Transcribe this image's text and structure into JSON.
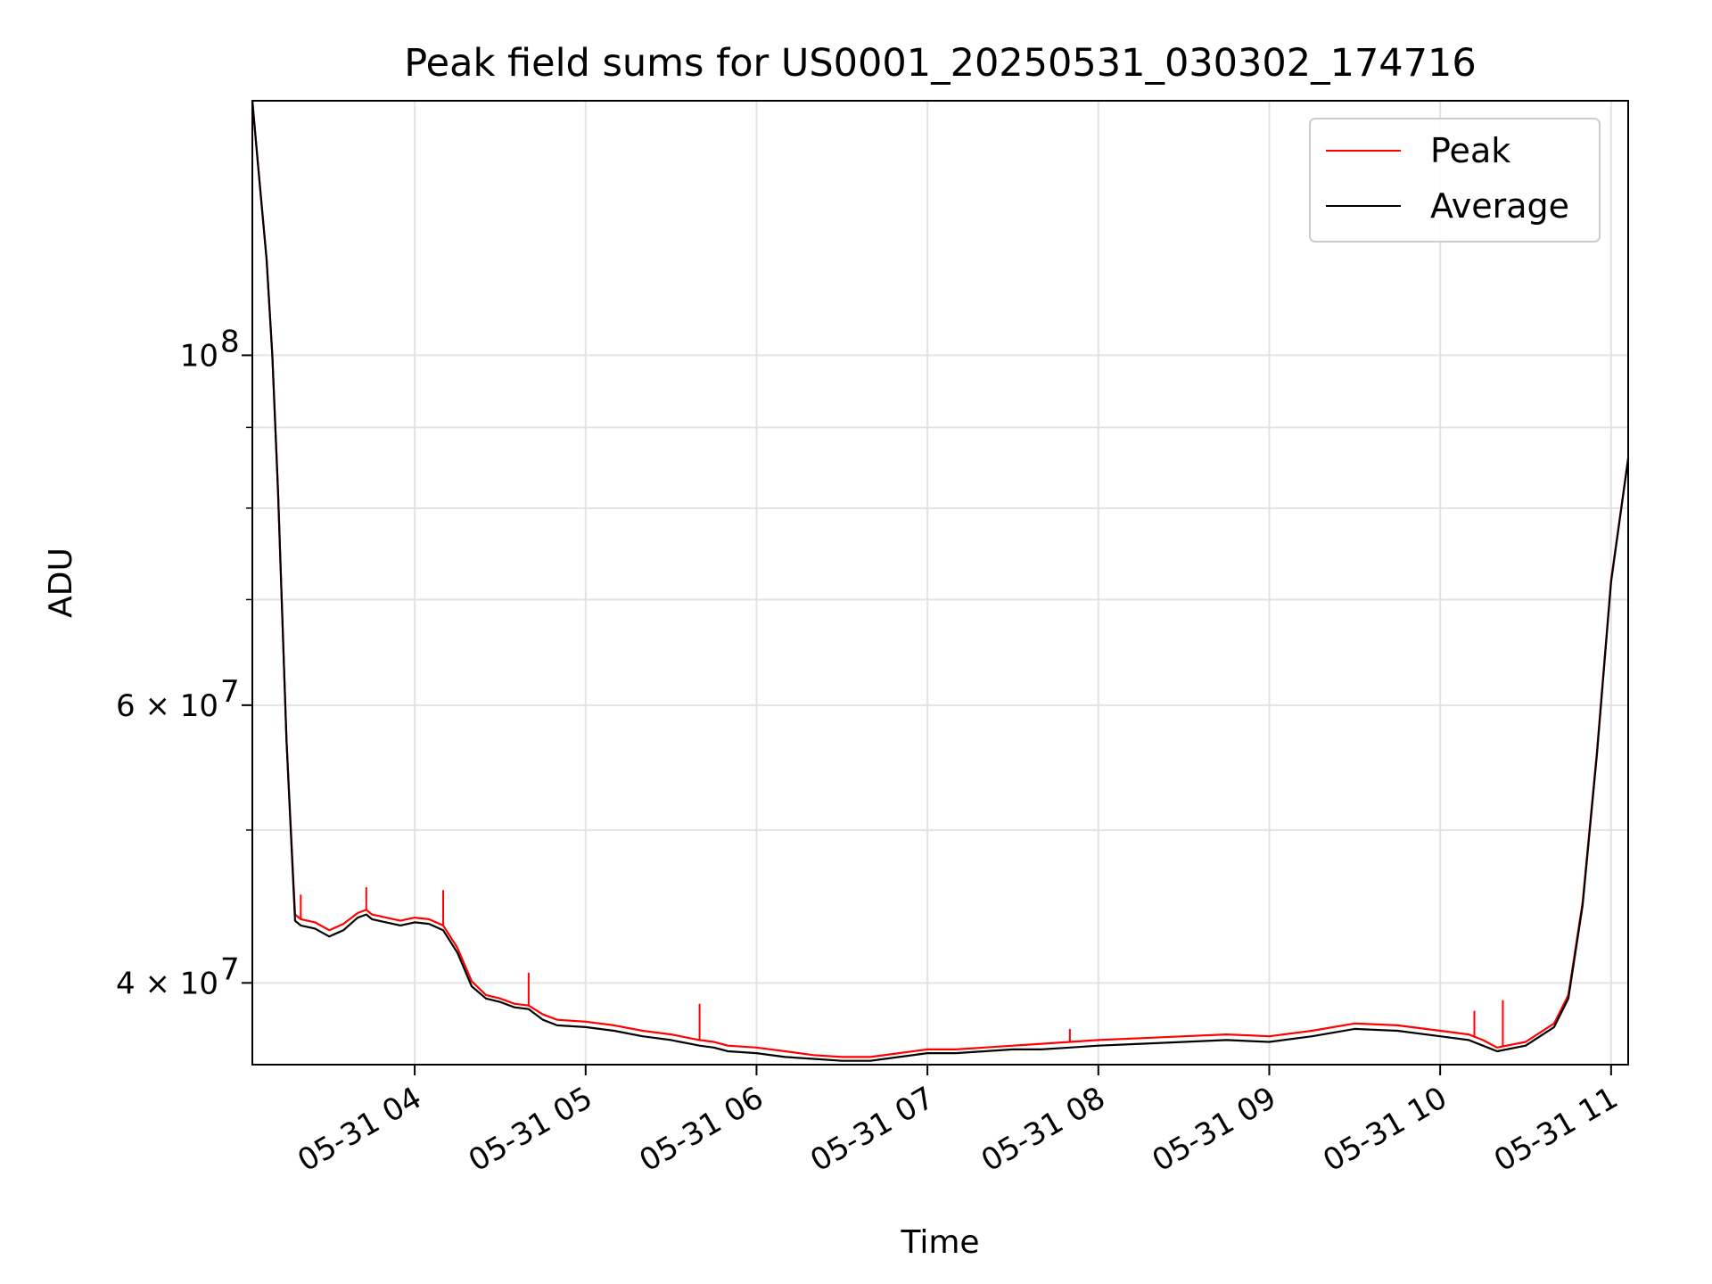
{
  "chart_data": {
    "type": "line",
    "title": "Peak field sums for US0001_20250531_030302_174716",
    "xlabel": "Time",
    "ylabel": "ADU",
    "yscale": "log",
    "xlim": [
      "2025-05-31T03:03:00",
      "2025-05-31T11:06:00"
    ],
    "ylim": [
      35500000,
      145000000
    ],
    "grid": true,
    "legend_position": "top-right",
    "x_ticks": [
      "05-31 04",
      "05-31 05",
      "05-31 06",
      "05-31 07",
      "05-31 08",
      "05-31 09",
      "05-31 10",
      "05-31 11"
    ],
    "x_tick_values": [
      "2025-05-31T04:00",
      "2025-05-31T05:00",
      "2025-05-31T06:00",
      "2025-05-31T07:00",
      "2025-05-31T08:00",
      "2025-05-31T09:00",
      "2025-05-31T10:00",
      "2025-05-31T11:00"
    ],
    "y_major_ticks": [
      {
        "value": 40000000,
        "label": "4 × 10",
        "exp": "7"
      },
      {
        "value": 60000000,
        "label": "6 × 10",
        "exp": "7"
      },
      {
        "value": 100000000,
        "label": "10",
        "exp": "8"
      }
    ],
    "y_minor_ticks": [
      50000000,
      70000000,
      80000000,
      90000000
    ],
    "series": [
      {
        "name": "Peak",
        "color": "#ff0000",
        "x": [
          "03:03",
          "03:05",
          "03:08",
          "03:10",
          "03:12",
          "03:15",
          "03:18",
          "03:20",
          "03:25",
          "03:30",
          "03:35",
          "03:40",
          "03:43",
          "03:45",
          "03:50",
          "03:55",
          "04:00",
          "04:05",
          "04:10",
          "04:15",
          "04:20",
          "04:25",
          "04:30",
          "04:35",
          "04:40",
          "04:45",
          "04:50",
          "05:00",
          "05:10",
          "05:20",
          "05:30",
          "05:40",
          "05:45",
          "05:50",
          "06:00",
          "06:10",
          "06:20",
          "06:30",
          "06:40",
          "06:50",
          "07:00",
          "07:10",
          "07:20",
          "07:30",
          "07:40",
          "07:50",
          "08:00",
          "08:15",
          "08:30",
          "08:45",
          "09:00",
          "09:15",
          "09:30",
          "09:45",
          "10:00",
          "10:10",
          "10:15",
          "10:20",
          "10:30",
          "10:40",
          "10:45",
          "10:50",
          "10:55",
          "11:00",
          "11:06"
        ],
        "y": [
          145000000,
          132000000,
          115000000,
          100000000,
          82000000,
          57000000,
          44200000,
          43900000,
          43700000,
          43200000,
          43600000,
          44300000,
          44500000,
          44200000,
          44000000,
          43800000,
          44000000,
          43900000,
          43500000,
          42100000,
          40100000,
          39300000,
          39100000,
          38800000,
          38700000,
          38200000,
          37900000,
          37800000,
          37600000,
          37300000,
          37100000,
          36800000,
          36700000,
          36500000,
          36400000,
          36200000,
          36000000,
          35900000,
          35900000,
          36100000,
          36300000,
          36300000,
          36400000,
          36500000,
          36600000,
          36700000,
          36800000,
          36900000,
          37000000,
          37100000,
          37000000,
          37300000,
          37700000,
          37600000,
          37300000,
          37100000,
          36800000,
          36400000,
          36700000,
          37700000,
          39300000,
          45000000,
          56000000,
          72000000,
          86000000
        ]
      },
      {
        "name": "Average",
        "color": "#000000",
        "x": [
          "03:03",
          "03:05",
          "03:08",
          "03:10",
          "03:12",
          "03:15",
          "03:18",
          "03:20",
          "03:25",
          "03:30",
          "03:35",
          "03:40",
          "03:43",
          "03:45",
          "03:50",
          "03:55",
          "04:00",
          "04:05",
          "04:10",
          "04:15",
          "04:20",
          "04:25",
          "04:30",
          "04:35",
          "04:40",
          "04:45",
          "04:50",
          "05:00",
          "05:10",
          "05:20",
          "05:30",
          "05:40",
          "05:45",
          "05:50",
          "06:00",
          "06:10",
          "06:20",
          "06:30",
          "06:40",
          "06:50",
          "07:00",
          "07:10",
          "07:20",
          "07:30",
          "07:40",
          "07:50",
          "08:00",
          "08:15",
          "08:30",
          "08:45",
          "09:00",
          "09:15",
          "09:30",
          "09:45",
          "10:00",
          "10:10",
          "10:15",
          "10:20",
          "10:30",
          "10:40",
          "10:45",
          "10:50",
          "10:55",
          "11:00",
          "11:06"
        ],
        "y": [
          145000000,
          132000000,
          115000000,
          100000000,
          82000000,
          57000000,
          43800000,
          43500000,
          43300000,
          42800000,
          43200000,
          44000000,
          44200000,
          43900000,
          43700000,
          43500000,
          43700000,
          43600000,
          43200000,
          41800000,
          39800000,
          39100000,
          38900000,
          38600000,
          38500000,
          37900000,
          37600000,
          37500000,
          37300000,
          37000000,
          36800000,
          36500000,
          36400000,
          36200000,
          36100000,
          35900000,
          35800000,
          35700000,
          35700000,
          35900000,
          36100000,
          36100000,
          36200000,
          36300000,
          36300000,
          36400000,
          36500000,
          36600000,
          36700000,
          36800000,
          36700000,
          37000000,
          37400000,
          37300000,
          37000000,
          36800000,
          36500000,
          36200000,
          36500000,
          37500000,
          39100000,
          44800000,
          55800000,
          71800000,
          86000000
        ]
      }
    ],
    "spikes": [
      {
        "x": "03:20",
        "y": 45500000
      },
      {
        "x": "03:43",
        "y": 46000000
      },
      {
        "x": "04:10",
        "y": 45800000
      },
      {
        "x": "04:40",
        "y": 40600000
      },
      {
        "x": "05:40",
        "y": 38800000
      },
      {
        "x": "07:50",
        "y": 37400000
      },
      {
        "x": "10:12",
        "y": 38400000
      },
      {
        "x": "10:22",
        "y": 39000000
      }
    ]
  }
}
